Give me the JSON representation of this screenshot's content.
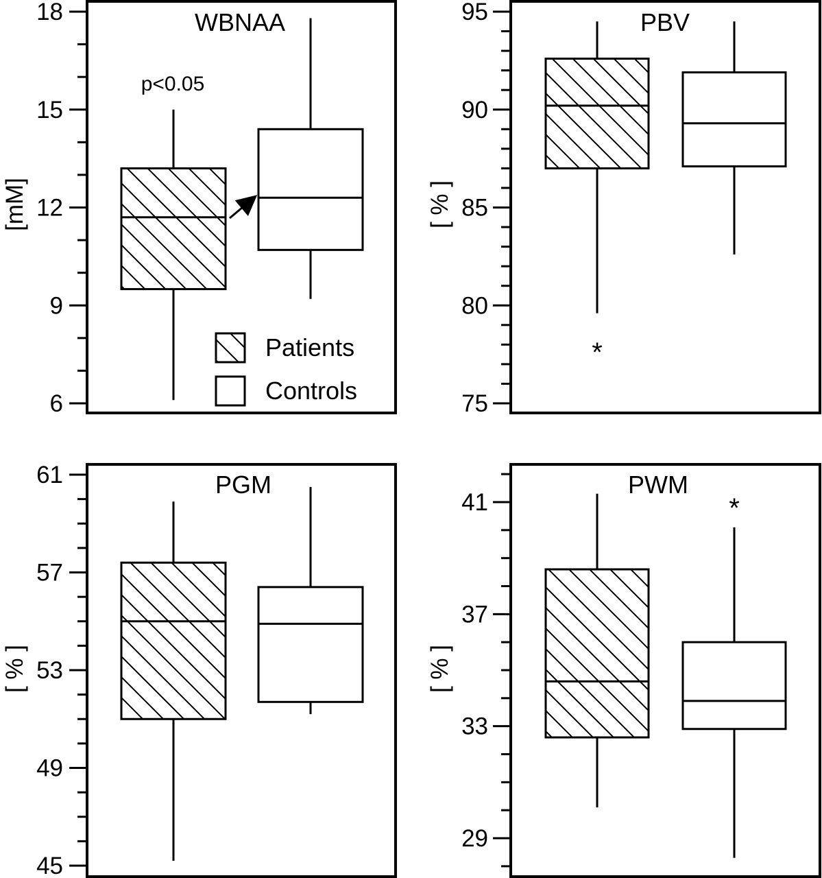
{
  "chart_data": [
    {
      "type": "box",
      "title": "WBNAA",
      "ylabel": "[mM]",
      "ylim": [
        6,
        18
      ],
      "yticks": [
        6,
        9,
        12,
        15,
        18
      ],
      "minor_step": 1,
      "annotation": "p<0.05",
      "series": [
        {
          "name": "Patients",
          "hatched": true,
          "whisker_low": 6.1,
          "q1": 9.5,
          "median": 11.7,
          "q3": 13.2,
          "whisker_high": 15.0,
          "outliers": []
        },
        {
          "name": "Controls",
          "hatched": false,
          "whisker_low": 9.2,
          "q1": 10.7,
          "median": 12.3,
          "q3": 14.4,
          "whisker_high": 17.8,
          "outliers": []
        }
      ],
      "legend": [
        {
          "label": "Patients",
          "hatched": true
        },
        {
          "label": "Controls",
          "hatched": false
        }
      ]
    },
    {
      "type": "box",
      "title": "PBV",
      "ylabel": "[ % ]",
      "ylim": [
        75,
        95
      ],
      "yticks": [
        75,
        80,
        85,
        90,
        95
      ],
      "minor_step": 1,
      "series": [
        {
          "name": "Patients",
          "hatched": true,
          "whisker_low": 79.6,
          "q1": 87.0,
          "median": 90.2,
          "q3": 92.6,
          "whisker_high": 94.5,
          "outliers": [
            77.9
          ]
        },
        {
          "name": "Controls",
          "hatched": false,
          "whisker_low": 82.6,
          "q1": 87.1,
          "median": 89.3,
          "q3": 91.9,
          "whisker_high": 94.5,
          "outliers": []
        }
      ]
    },
    {
      "type": "box",
      "title": "PGM",
      "ylabel": "[ % ]",
      "ylim": [
        45,
        61
      ],
      "yticks": [
        45,
        49,
        53,
        57,
        61
      ],
      "minor_step": 1,
      "series": [
        {
          "name": "Patients",
          "hatched": true,
          "whisker_low": 45.2,
          "q1": 51.0,
          "median": 55.0,
          "q3": 57.4,
          "whisker_high": 59.9,
          "outliers": []
        },
        {
          "name": "Controls",
          "hatched": false,
          "whisker_low": 51.2,
          "q1": 51.7,
          "median": 54.9,
          "q3": 56.4,
          "whisker_high": 60.5,
          "outliers": []
        }
      ]
    },
    {
      "type": "box",
      "title": "PWM",
      "ylabel": "[ % ]",
      "ylim": [
        28,
        42
      ],
      "yticks": [
        29,
        33,
        37,
        41
      ],
      "minor_step": 1,
      "series": [
        {
          "name": "Patients",
          "hatched": true,
          "whisker_low": 30.1,
          "q1": 32.6,
          "median": 34.6,
          "q3": 38.6,
          "whisker_high": 41.3,
          "outliers": []
        },
        {
          "name": "Controls",
          "hatched": false,
          "whisker_low": 28.3,
          "q1": 32.9,
          "median": 33.9,
          "q3": 36.0,
          "whisker_high": 40.1,
          "outliers": [
            41.0
          ]
        }
      ]
    }
  ]
}
